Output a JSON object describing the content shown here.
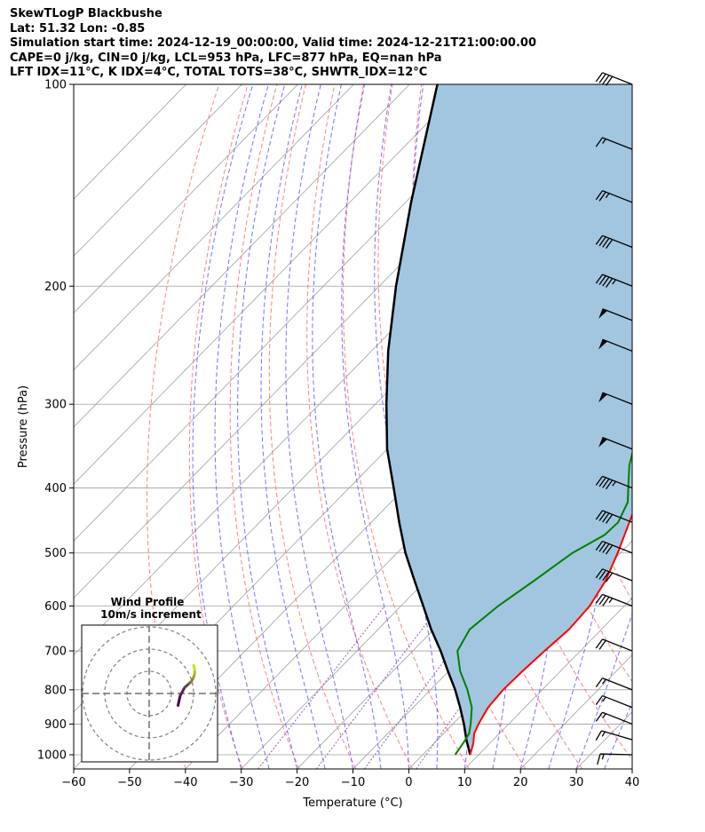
{
  "header": {
    "title": "SkewTLogP Blackbushe",
    "location": "Lat: 51.32   Lon: -0.85",
    "times": "Simulation start time: 2024-12-19_00:00:00, Valid time: 2024-12-21T21:00:00.00",
    "indices1": "CAPE=0 j/kg, CIN=0 j/kg, LCL=953 hPa, LFC=877 hPa, EQ=nan hPa",
    "indices2": "LFT IDX=11°C, K IDX=4°C, TOTAL TOTS=38°C, SHWTR_IDX=12°C"
  },
  "chart_data": {
    "type": "line",
    "subtype": "skew-t log-p",
    "xlabel": "Temperature (°C)",
    "ylabel": "Pressure (hPa)",
    "xlim": [
      -60,
      40
    ],
    "ylim": [
      1050,
      100
    ],
    "y_scale": "log",
    "xticks": [
      -60,
      -50,
      -40,
      -30,
      -20,
      -10,
      0,
      10,
      20,
      30,
      40
    ],
    "yticks": [
      100,
      200,
      300,
      400,
      500,
      600,
      700,
      800,
      900,
      1000
    ],
    "grid": true,
    "colors": {
      "temperature": "#ff0000",
      "dewpoint": "#008000",
      "parcel": "#000000",
      "cape_fill": "#a2c6e0",
      "isotherm": "#a0a0a0",
      "dry_adiabat": "#ff6b6b",
      "moist_adiabat": "#5a5aff",
      "mixing_ratio": "#9b59b6"
    },
    "series": [
      {
        "role": "temperature",
        "points": [
          [
            1000,
            8.5
          ],
          [
            960,
            7.0
          ],
          [
            930,
            5.5
          ],
          [
            900,
            4.6
          ],
          [
            850,
            3.4
          ],
          [
            800,
            3.0
          ],
          [
            750,
            3.2
          ],
          [
            700,
            3.6
          ],
          [
            650,
            4.2
          ],
          [
            600,
            3.8
          ],
          [
            550,
            2.2
          ],
          [
            500,
            -0.5
          ],
          [
            450,
            -3.8
          ],
          [
            400,
            -7.4
          ],
          [
            350,
            -11.5
          ],
          [
            320,
            -14.0
          ],
          [
            300,
            -14.6
          ],
          [
            280,
            -14.8
          ],
          [
            260,
            -14.4
          ],
          [
            240,
            -13.4
          ],
          [
            220,
            -11.6
          ],
          [
            200,
            -9.6
          ],
          [
            180,
            -6.4
          ],
          [
            160,
            -2.6
          ],
          [
            140,
            0.8
          ],
          [
            120,
            3.6
          ],
          [
            110,
            5.2
          ],
          [
            100,
            6.2
          ]
        ]
      },
      {
        "role": "dewpoint",
        "points": [
          [
            1000,
            5.8
          ],
          [
            960,
            5.2
          ],
          [
            930,
            4.6
          ],
          [
            900,
            3.2
          ],
          [
            850,
            0.5
          ],
          [
            800,
            -3.4
          ],
          [
            750,
            -8.0
          ],
          [
            700,
            -12.0
          ],
          [
            650,
            -13.6
          ],
          [
            600,
            -12.6
          ],
          [
            550,
            -10.6
          ],
          [
            500,
            -8.6
          ],
          [
            470,
            -6.0
          ],
          [
            450,
            -5.8
          ],
          [
            420,
            -7.6
          ],
          [
            400,
            -10.0
          ],
          [
            370,
            -13.8
          ],
          [
            340,
            -17.0
          ],
          [
            310,
            -19.0
          ],
          [
            280,
            -20.6
          ],
          [
            260,
            -21.8
          ],
          [
            240,
            -22.4
          ],
          [
            220,
            -22.4
          ],
          [
            200,
            -21.8
          ],
          [
            180,
            -20.4
          ],
          [
            165,
            -19.8
          ],
          [
            150,
            -21.6
          ],
          [
            140,
            -21.0
          ],
          [
            130,
            -18.4
          ],
          [
            120,
            -15.0
          ],
          [
            110,
            -12.2
          ],
          [
            100,
            -9.4
          ]
        ]
      },
      {
        "role": "parcel",
        "points": [
          [
            1000,
            8.5
          ],
          [
            950,
            5.2
          ],
          [
            900,
            2.0
          ],
          [
            850,
            -1.6
          ],
          [
            800,
            -5.6
          ],
          [
            750,
            -10.2
          ],
          [
            700,
            -15.0
          ],
          [
            650,
            -20.5
          ],
          [
            600,
            -26.0
          ],
          [
            550,
            -32.0
          ],
          [
            500,
            -38.5
          ],
          [
            450,
            -45.0
          ],
          [
            400,
            -52.0
          ],
          [
            350,
            -60.0
          ],
          [
            300,
            -68.0
          ],
          [
            250,
            -77.0
          ],
          [
            200,
            -87.0
          ],
          [
            150,
            -99.0
          ],
          [
            100,
            -115.0
          ]
        ]
      }
    ],
    "wind_barbs": [
      {
        "p": 100,
        "speed_kt": 40,
        "dir_deg": 280
      },
      {
        "p": 125,
        "speed_kt": 15,
        "dir_deg": 280
      },
      {
        "p": 150,
        "speed_kt": 25,
        "dir_deg": 280
      },
      {
        "p": 175,
        "speed_kt": 40,
        "dir_deg": 280
      },
      {
        "p": 200,
        "speed_kt": 45,
        "dir_deg": 280
      },
      {
        "p": 225,
        "speed_kt": 50,
        "dir_deg": 280
      },
      {
        "p": 250,
        "speed_kt": 50,
        "dir_deg": 280
      },
      {
        "p": 300,
        "speed_kt": 50,
        "dir_deg": 280
      },
      {
        "p": 350,
        "speed_kt": 50,
        "dir_deg": 280
      },
      {
        "p": 400,
        "speed_kt": 45,
        "dir_deg": 280
      },
      {
        "p": 450,
        "speed_kt": 40,
        "dir_deg": 280
      },
      {
        "p": 500,
        "speed_kt": 40,
        "dir_deg": 280
      },
      {
        "p": 550,
        "speed_kt": 40,
        "dir_deg": 280
      },
      {
        "p": 600,
        "speed_kt": 35,
        "dir_deg": 280
      },
      {
        "p": 700,
        "speed_kt": 20,
        "dir_deg": 280
      },
      {
        "p": 800,
        "speed_kt": 15,
        "dir_deg": 280
      },
      {
        "p": 850,
        "speed_kt": 15,
        "dir_deg": 280
      },
      {
        "p": 900,
        "speed_kt": 15,
        "dir_deg": 280
      },
      {
        "p": 950,
        "speed_kt": 15,
        "dir_deg": 275
      },
      {
        "p": 1000,
        "speed_kt": 15,
        "dir_deg": 260
      }
    ],
    "inset": {
      "title_line1": "Wind Profile",
      "title_line2": "10m/s increment",
      "rings_ms": [
        10,
        20,
        30
      ],
      "hodograph": [
        [
          0,
          13
        ],
        [
          5,
          14
        ],
        [
          9,
          16
        ],
        [
          11,
          18
        ],
        [
          12,
          19
        ],
        [
          14,
          20
        ],
        [
          16,
          20.5
        ],
        [
          18,
          20.5
        ],
        [
          20,
          20
        ]
      ],
      "hodograph_color_start": "#440154",
      "hodograph_color_end": "#c8e020"
    }
  }
}
